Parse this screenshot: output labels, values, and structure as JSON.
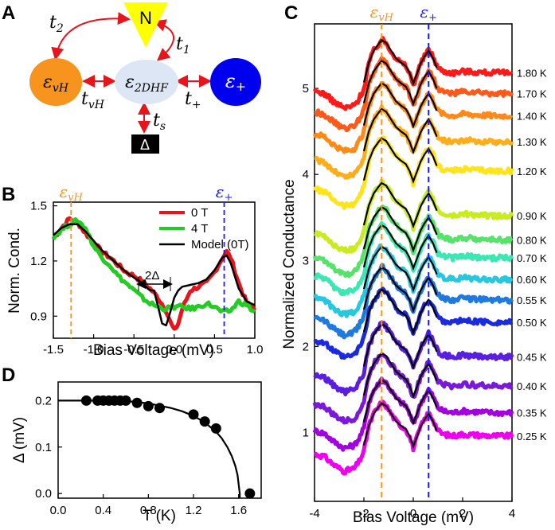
{
  "chart_data": [
    {
      "panel": "A",
      "type": "diagram",
      "nodes": [
        {
          "id": "N",
          "label": "N",
          "color": "#ffff00"
        },
        {
          "id": "evH",
          "label": "ε",
          "sub": "vH",
          "color": "#f7941d"
        },
        {
          "id": "e2DHF",
          "label": "ε",
          "sub": "2DHF",
          "color": "#dde6f4"
        },
        {
          "id": "eplus",
          "label": "ε",
          "sub": "+",
          "color": "#0000ee"
        },
        {
          "id": "gap",
          "label": "Δ",
          "color": "#000000"
        }
      ],
      "couplings": [
        {
          "label": "t",
          "sub": "2"
        },
        {
          "label": "t",
          "sub": "1"
        },
        {
          "label": "t",
          "sub": "vH"
        },
        {
          "label": "t",
          "sub": "+"
        },
        {
          "label": "t",
          "sub": "s"
        }
      ]
    },
    {
      "panel": "B",
      "type": "line",
      "xlabel": "Bias Voltage (mV)",
      "ylabel": "Norm. Cond.",
      "xlim": [
        -1.5,
        1.0
      ],
      "ylim": [
        0.78,
        1.52
      ],
      "xticks": [
        "-1.5",
        "-1.0",
        "-0.5",
        "0.0",
        "0.5",
        "1.0"
      ],
      "yticks": [
        "0.9",
        "1.2",
        "1.5"
      ],
      "markers": [
        {
          "label": "ε",
          "sub": "vH",
          "x": -1.28,
          "color": "#f7941d"
        },
        {
          "label": "ε",
          "sub": "+",
          "x": 0.62,
          "color": "#1a1aff"
        }
      ],
      "annotation": "2Δ",
      "series": [
        {
          "name": "0 T",
          "color": "#e8141b",
          "x": [
            -1.5,
            -1.4,
            -1.3,
            -1.2,
            -1.1,
            -1.0,
            -0.9,
            -0.8,
            -0.7,
            -0.6,
            -0.5,
            -0.4,
            -0.3,
            -0.2,
            -0.1,
            -0.05,
            0.0,
            0.05,
            0.1,
            0.2,
            0.3,
            0.4,
            0.5,
            0.6,
            0.65,
            0.7,
            0.8,
            0.9,
            1.0
          ],
          "values": [
            1.32,
            1.38,
            1.43,
            1.41,
            1.35,
            1.3,
            1.25,
            1.22,
            1.18,
            1.14,
            1.12,
            1.09,
            1.05,
            1.0,
            0.93,
            0.87,
            0.82,
            0.86,
            0.94,
            1.04,
            1.06,
            1.08,
            1.14,
            1.22,
            1.25,
            1.22,
            1.08,
            0.97,
            0.94
          ]
        },
        {
          "name": "4 T",
          "color": "#22cc22",
          "x": [
            -1.5,
            -1.4,
            -1.3,
            -1.2,
            -1.1,
            -1.0,
            -0.9,
            -0.8,
            -0.7,
            -0.6,
            -0.5,
            -0.4,
            -0.3,
            -0.2,
            -0.1,
            0.0,
            0.1,
            0.2,
            0.3,
            0.4,
            0.5,
            0.6,
            0.7,
            0.8,
            0.9,
            1.0
          ],
          "values": [
            1.33,
            1.37,
            1.4,
            1.42,
            1.38,
            1.28,
            1.22,
            1.18,
            1.12,
            1.08,
            1.04,
            1.0,
            0.97,
            0.95,
            0.94,
            0.95,
            0.95,
            0.94,
            0.95,
            0.97,
            0.95,
            0.92,
            0.93,
            0.98,
            0.96,
            0.92
          ]
        },
        {
          "name": "Model (0T)",
          "color": "#000000",
          "x": [
            -1.5,
            -1.4,
            -1.3,
            -1.2,
            -1.1,
            -1.0,
            -0.9,
            -0.8,
            -0.7,
            -0.6,
            -0.5,
            -0.4,
            -0.3,
            -0.25,
            -0.2,
            -0.15,
            -0.1,
            -0.05,
            0.0,
            0.05,
            0.1,
            0.2,
            0.3,
            0.4,
            0.5,
            0.6,
            0.65,
            0.7,
            0.8,
            0.9,
            1.0
          ],
          "values": [
            1.34,
            1.38,
            1.4,
            1.4,
            1.36,
            1.31,
            1.26,
            1.22,
            1.18,
            1.14,
            1.11,
            1.08,
            1.04,
            1.04,
            0.95,
            0.86,
            0.85,
            0.92,
            1.0,
            1.04,
            1.06,
            1.07,
            1.08,
            1.1,
            1.15,
            1.22,
            1.23,
            1.19,
            1.05,
            0.98,
            0.96
          ]
        }
      ]
    },
    {
      "panel": "D",
      "type": "scatter",
      "xlabel": "T (K)",
      "ylabel": "Δ (mV)",
      "xlim": [
        0.0,
        1.8
      ],
      "ylim": [
        -0.01,
        0.24
      ],
      "xticks": [
        "0.0",
        "0.4",
        "0.8",
        "1.2",
        "1.6"
      ],
      "yticks": [
        "0.0",
        "0.1",
        "0.2"
      ],
      "points_x": [
        0.25,
        0.35,
        0.4,
        0.45,
        0.5,
        0.55,
        0.6,
        0.7,
        0.8,
        0.9,
        1.2,
        1.3,
        1.4,
        1.7
      ],
      "points_y": [
        0.2,
        0.2,
        0.2,
        0.2,
        0.2,
        0.2,
        0.2,
        0.195,
        0.188,
        0.184,
        0.17,
        0.155,
        0.14,
        0.0
      ],
      "fit_x": [
        0.0,
        0.2,
        0.4,
        0.6,
        0.8,
        1.0,
        1.1,
        1.2,
        1.3,
        1.4,
        1.45,
        1.5,
        1.54,
        1.57,
        1.59,
        1.61
      ],
      "fit_y": [
        0.2,
        0.2,
        0.2,
        0.199,
        0.194,
        0.184,
        0.177,
        0.167,
        0.153,
        0.133,
        0.119,
        0.1,
        0.08,
        0.06,
        0.04,
        0.0
      ]
    },
    {
      "panel": "C",
      "type": "line",
      "xlabel": "Bias Voltage (mV)",
      "ylabel": "Normalized Conductance",
      "xlim": [
        -4,
        4
      ],
      "ylim": [
        0.2,
        5.75
      ],
      "xticks": [
        "-4",
        "-2",
        "0",
        "2",
        "4"
      ],
      "yticks": [
        "1",
        "2",
        "3",
        "4",
        "5"
      ],
      "markers": [
        {
          "label": "ε",
          "sub": "vH",
          "x": -1.28,
          "color": "#f7941d"
        },
        {
          "label": "ε",
          "sub": "+",
          "x": 0.62,
          "color": "#1a1aff"
        }
      ],
      "series": [
        {
          "name": "0.25 K",
          "offset": 0.0,
          "color": "#ee00ee"
        },
        {
          "name": "0.35 K",
          "offset": 0.27,
          "color": "#a200e0"
        },
        {
          "name": "0.40 K",
          "offset": 0.58,
          "color": "#7a1ad8"
        },
        {
          "name": "0.45 K",
          "offset": 0.92,
          "color": "#5a1ee0"
        },
        {
          "name": "0.50 K",
          "offset": 1.32,
          "color": "#1a2bdf"
        },
        {
          "name": "0.55 K",
          "offset": 1.58,
          "color": "#1e7adf"
        },
        {
          "name": "0.60 K",
          "offset": 1.82,
          "color": "#25c8df"
        },
        {
          "name": "0.70 K",
          "offset": 2.07,
          "color": "#3be8b4"
        },
        {
          "name": "0.80 K",
          "offset": 2.28,
          "color": "#56e36a"
        },
        {
          "name": "0.90 K",
          "offset": 2.56,
          "color": "#c9ec1e"
        },
        {
          "name": "1.20 K",
          "offset": 3.08,
          "color": "#ffe41a"
        },
        {
          "name": "1.30 K",
          "offset": 3.42,
          "color": "#ffae1a"
        },
        {
          "name": "1.40 K",
          "offset": 3.72,
          "color": "#ff8a1a"
        },
        {
          "name": "1.70 K",
          "offset": 3.98,
          "color": "#ff5a1a"
        },
        {
          "name": "1.80 K",
          "offset": 4.22,
          "color": "#ff1a1a"
        }
      ],
      "base_x": [
        -4.0,
        -3.6,
        -3.2,
        -2.8,
        -2.4,
        -2.2,
        -2.0,
        -1.8,
        -1.6,
        -1.4,
        -1.28,
        -1.1,
        -0.9,
        -0.7,
        -0.5,
        -0.3,
        -0.15,
        0.0,
        0.15,
        0.3,
        0.45,
        0.62,
        0.8,
        1.0,
        1.2,
        1.6,
        2.0,
        2.6,
        3.2,
        4.0
      ],
      "base_y": [
        0.75,
        0.72,
        0.62,
        0.55,
        0.58,
        0.66,
        0.78,
        1.08,
        1.22,
        1.3,
        1.35,
        1.31,
        1.22,
        1.13,
        1.08,
        1.04,
        0.95,
        0.82,
        0.94,
        1.07,
        1.15,
        1.23,
        1.15,
        1.02,
        0.98,
        0.96,
        0.98,
        0.97,
        0.96,
        0.96
      ],
      "model_x": [
        -2.0,
        -1.8,
        -1.6,
        -1.4,
        -1.28,
        -1.1,
        -0.9,
        -0.7,
        -0.5,
        -0.3,
        -0.15,
        0.0,
        0.15,
        0.3,
        0.45,
        0.62,
        0.8,
        0.95
      ],
      "model_y": [
        0.85,
        1.08,
        1.22,
        1.3,
        1.34,
        1.31,
        1.22,
        1.13,
        1.08,
        1.04,
        0.96,
        0.84,
        0.95,
        1.07,
        1.15,
        1.22,
        1.13,
        1.02
      ]
    }
  ]
}
